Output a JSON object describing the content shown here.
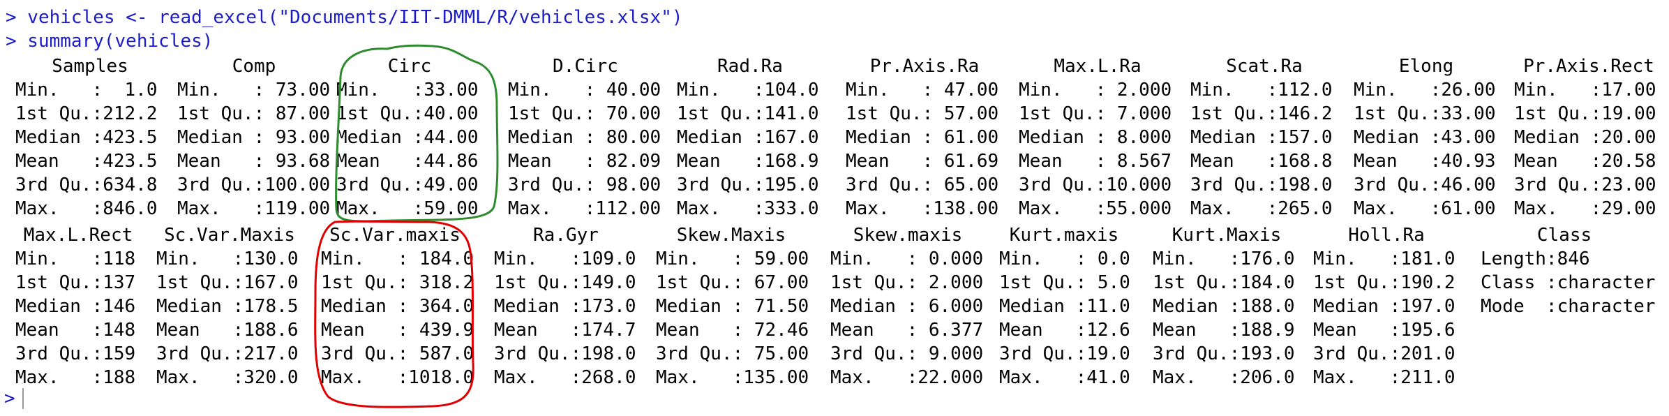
{
  "console": {
    "command1": "> vehicles <- read_excel(\"Documents/IIT-DMML/R/vehicles.xlsx\")",
    "command2": "> summary(vehicles)",
    "prompt": ">"
  },
  "colors": {
    "command": "#1c1cc8",
    "green_circle": "#2e8b2e",
    "red_circle": "#e00000"
  },
  "block1": {
    "headers": [
      "Samples",
      "Comp",
      "Circ",
      "D.Circ",
      "Rad.Ra",
      "Pr.Axis.Ra",
      "Max.L.Ra",
      "Scat.Ra",
      "Elong",
      "Pr.Axis.Rect"
    ],
    "rows": [
      [
        "Min.   :  1.0",
        "Min.   : 73.00",
        "Min.   :33.00",
        "Min.   : 40.00",
        "Min.   :104.0",
        "Min.   : 47.00",
        "Min.   : 2.000",
        "Min.   :112.0",
        "Min.   :26.00",
        "Min.   :17.00"
      ],
      [
        "1st Qu.:212.2",
        "1st Qu.: 87.00",
        "1st Qu.:40.00",
        "1st Qu.: 70.00",
        "1st Qu.:141.0",
        "1st Qu.: 57.00",
        "1st Qu.: 7.000",
        "1st Qu.:146.2",
        "1st Qu.:33.00",
        "1st Qu.:19.00"
      ],
      [
        "Median :423.5",
        "Median : 93.00",
        "Median :44.00",
        "Median : 80.00",
        "Median :167.0",
        "Median : 61.00",
        "Median : 8.000",
        "Median :157.0",
        "Median :43.00",
        "Median :20.00"
      ],
      [
        "Mean   :423.5",
        "Mean   : 93.68",
        "Mean   :44.86",
        "Mean   : 82.09",
        "Mean   :168.9",
        "Mean   : 61.69",
        "Mean   : 8.567",
        "Mean   :168.8",
        "Mean   :40.93",
        "Mean   :20.58"
      ],
      [
        "3rd Qu.:634.8",
        "3rd Qu.:100.00",
        "3rd Qu.:49.00",
        "3rd Qu.: 98.00",
        "3rd Qu.:195.0",
        "3rd Qu.: 65.00",
        "3rd Qu.:10.000",
        "3rd Qu.:198.0",
        "3rd Qu.:46.00",
        "3rd Qu.:23.00"
      ],
      [
        "Max.   :846.0",
        "Max.   :119.00",
        "Max.   :59.00",
        "Max.   :112.00",
        "Max.   :333.0",
        "Max.   :138.00",
        "Max.   :55.000",
        "Max.   :265.0",
        "Max.   :61.00",
        "Max.   :29.00"
      ]
    ]
  },
  "block2": {
    "headers": [
      "Max.L.Rect",
      "Sc.Var.Maxis",
      "Sc.Var.maxis",
      "Ra.Gyr",
      "Skew.Maxis",
      "Skew.maxis",
      "Kurt.maxis",
      "Kurt.Maxis",
      "Holl.Ra",
      "Class"
    ],
    "rows": [
      [
        "Min.   :118",
        "Min.   :130.0",
        "Min.   : 184.0",
        "Min.   :109.0",
        "Min.   : 59.00",
        "Min.   : 0.000",
        "Min.   : 0.0",
        "Min.   :176.0",
        "Min.   :181.0",
        "Length:846"
      ],
      [
        "1st Qu.:137",
        "1st Qu.:167.0",
        "1st Qu.: 318.2",
        "1st Qu.:149.0",
        "1st Qu.: 67.00",
        "1st Qu.: 2.000",
        "1st Qu.: 5.0",
        "1st Qu.:184.0",
        "1st Qu.:190.2",
        "Class :character"
      ],
      [
        "Median :146",
        "Median :178.5",
        "Median : 364.0",
        "Median :173.0",
        "Median : 71.50",
        "Median : 6.000",
        "Median :11.0",
        "Median :188.0",
        "Median :197.0",
        "Mode  :character"
      ],
      [
        "Mean   :148",
        "Mean   :188.6",
        "Mean   : 439.9",
        "Mean   :174.7",
        "Mean   : 72.46",
        "Mean   : 6.377",
        "Mean   :12.6",
        "Mean   :188.9",
        "Mean   :195.6",
        ""
      ],
      [
        "3rd Qu.:159",
        "3rd Qu.:217.0",
        "3rd Qu.: 587.0",
        "3rd Qu.:198.0",
        "3rd Qu.: 75.00",
        "3rd Qu.: 9.000",
        "3rd Qu.:19.0",
        "3rd Qu.:193.0",
        "3rd Qu.:201.0",
        ""
      ],
      [
        "Max.   :188",
        "Max.   :320.0",
        "Max.   :1018.0",
        "Max.   :268.0",
        "Max.   :135.00",
        "Max.   :22.000",
        "Max.   :41.0",
        "Max.   :206.0",
        "Max.   :211.0",
        ""
      ]
    ]
  }
}
